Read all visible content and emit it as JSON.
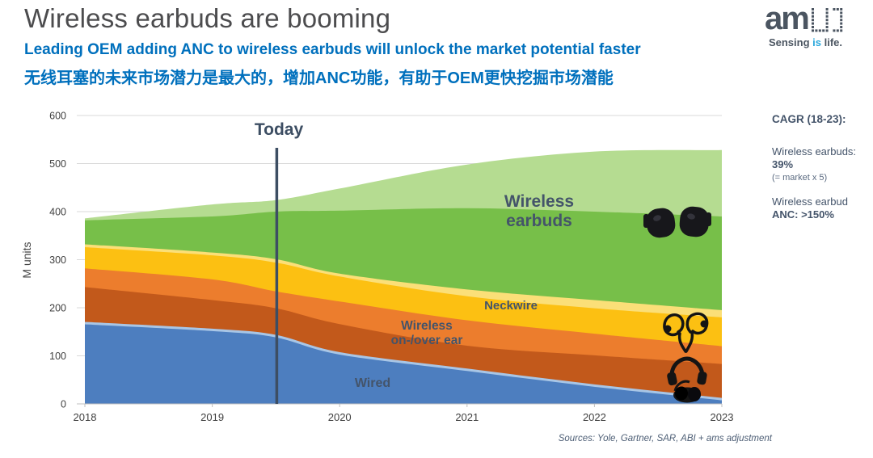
{
  "header": {
    "title": "Wireless earbuds are booming",
    "subtitle_en": "Leading OEM adding ANC to wireless earbuds will unlock the market potential faster",
    "subtitle_zh": "无线耳塞的未来市场潜力是最大的，增加ANC功能，有助于OEM更快挖掘市场潜能"
  },
  "logo": {
    "wordmark": "am",
    "tagline_sensing": "Sensing ",
    "tagline_is": "is",
    "tagline_life": " life.",
    "accent_color": "#2ba8dc",
    "mark_color": "#4b5561"
  },
  "sidebar": {
    "cagr_title": "CAGR (18-23):",
    "earbuds_label": "Wireless earbuds:",
    "earbuds_value": "39%",
    "earbuds_note": "(= market x 5)",
    "anc_label": "Wireless earbud",
    "anc_value": "ANC: >150%"
  },
  "labels": {
    "today": "Today",
    "earbuds_line1": "Wireless",
    "earbuds_line2": "earbuds",
    "neckwire": "Neckwire",
    "onover_line1": "Wireless",
    "onover_line2": "on-/over ear",
    "wired": "Wired"
  },
  "footer": {
    "sources": "Sources: Yole, Gartner, SAR, ABI + ams adjustment"
  },
  "chart_data": {
    "type": "area",
    "stacked": true,
    "title": "",
    "ylabel": "M units",
    "ylim": [
      0,
      600
    ],
    "yticks": [
      0,
      100,
      200,
      300,
      400,
      500,
      600
    ],
    "x": [
      2018,
      2019,
      2019.5,
      2020,
      2021,
      2022,
      2023
    ],
    "xticks": [
      2018,
      2019,
      2020,
      2021,
      2022,
      2023
    ],
    "grid": "horizontal",
    "legend": "in-plot labels",
    "today_marker_x": 2019.5,
    "series": [
      {
        "name": "Wired",
        "color": "#4d7ebf",
        "edge_color": "#a8c6e6",
        "values": [
          168,
          154,
          141,
          105,
          71,
          38,
          10
        ]
      },
      {
        "name": "Wireless on-/over ear",
        "color": "#c2591b",
        "values": [
          75,
          62,
          58,
          61,
          50,
          63,
          73
        ]
      },
      {
        "name": "Wireless on-/over ear (light band)",
        "color": "#ec7d2d",
        "values": [
          39,
          43,
          35,
          47,
          53,
          45,
          37
        ]
      },
      {
        "name": "Neckwire",
        "color": "#fcc012",
        "values": [
          44,
          50,
          60,
          52,
          50,
          53,
          60
        ]
      },
      {
        "name": "Neckwire (highlight band)",
        "color": "#fbdf78",
        "values": [
          6,
          6,
          7,
          6,
          14,
          17,
          15
        ]
      },
      {
        "name": "Wireless earbuds",
        "color": "#77bf49",
        "values": [
          50,
          75,
          99,
          131,
          169,
          184,
          195
        ]
      },
      {
        "name": "Wireless earbuds (light band)",
        "color": "#b5dc91",
        "values": [
          4,
          25,
          24,
          46,
          91,
          125,
          138
        ]
      }
    ],
    "product_images": [
      "wireless-earbuds",
      "neckband-earphones",
      "over-ear-headphones"
    ],
    "axis_color": "#bfbfbf",
    "grid_color": "#d9d9d9",
    "tick_label_color": "#3f3f3f",
    "today_line_color": "#3d4e63"
  }
}
